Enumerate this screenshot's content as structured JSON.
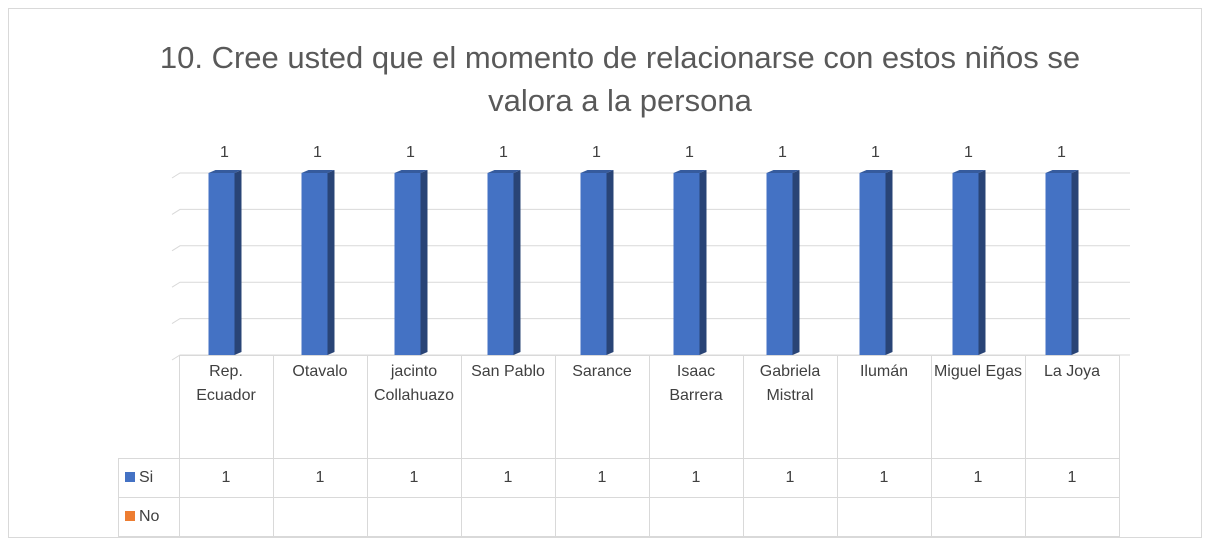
{
  "chart_data": {
    "type": "bar",
    "title": "10. Cree usted que el momento de relacionarse con estos niños se valora a la persona",
    "categories": [
      "Rep. Ecuador",
      "Otavalo",
      "jacinto Collahuazo",
      "San Pablo",
      "Sarance",
      "Isaac Barrera",
      "Gabriela Mistral",
      "Ilumán",
      "Miguel Egas",
      "La Joya"
    ],
    "series": [
      {
        "name": "Si",
        "color": "#4472c4",
        "values": [
          1,
          1,
          1,
          1,
          1,
          1,
          1,
          1,
          1,
          1
        ]
      },
      {
        "name": "No",
        "color": "#ed7d31",
        "values": [
          null,
          null,
          null,
          null,
          null,
          null,
          null,
          null,
          null,
          null
        ]
      }
    ],
    "ylim": [
      0,
      1
    ],
    "yticks": [
      0,
      0.2,
      0.4,
      0.6,
      0.8,
      1
    ],
    "grid": true,
    "data_table": true
  }
}
